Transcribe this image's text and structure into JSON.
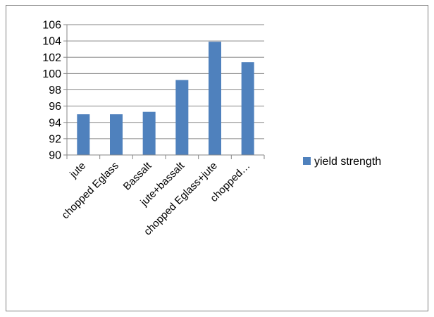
{
  "chart_data": {
    "type": "bar",
    "categories": [
      "jute",
      "chopped Eglass",
      "Bassalt",
      "jute+bassalt",
      "chopped Eglass+jute",
      "chopped…"
    ],
    "series": [
      {
        "name": "yield strength",
        "values": [
          95.0,
          95.0,
          95.3,
          99.2,
          103.9,
          101.4
        ],
        "color": "#4f81bd"
      }
    ],
    "ylim": [
      90,
      106
    ],
    "yticks": [
      90,
      92,
      94,
      96,
      98,
      100,
      102,
      104,
      106
    ],
    "title": "",
    "xlabel": "",
    "ylabel": "",
    "grid": true,
    "legend_position": "right"
  }
}
